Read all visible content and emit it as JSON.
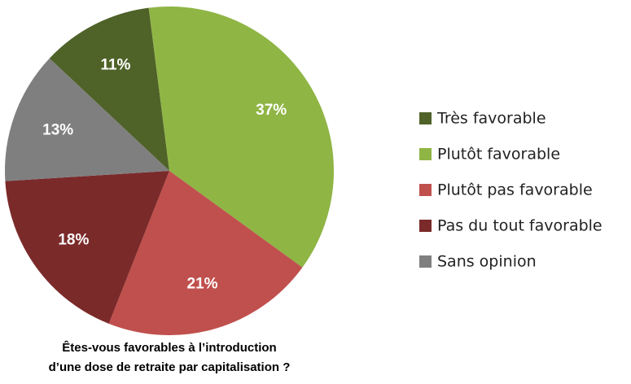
{
  "chart_data": {
    "type": "pie",
    "title": [
      "Êtes-vous favorables à l’introduction",
      "d’une dose de retraite par capitalisation ?"
    ],
    "categories": [
      "Très favorable",
      "Plutôt favorable",
      "Plutôt pas favorable",
      "Pas du tout favorable",
      "Sans opinion"
    ],
    "values": [
      11,
      37,
      21,
      18,
      13
    ],
    "value_labels": [
      "11%",
      "37%",
      "21%",
      "18%",
      "13%"
    ],
    "colors": [
      "#4f6228",
      "#8fb545",
      "#c0504d",
      "#7b2a2a",
      "#7f7f7f"
    ],
    "legend": "right"
  }
}
